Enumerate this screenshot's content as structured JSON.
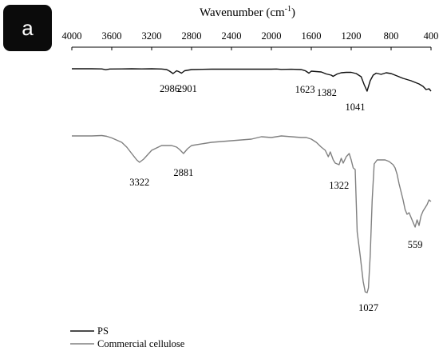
{
  "panel_label": "a",
  "chart_data": {
    "type": "line",
    "title": "",
    "xlabel": "Wavenumber (cm-1)",
    "xlabel_main": "Wavenumber (cm",
    "xlabel_sup": "-1",
    "xlabel_close": ")",
    "ylabel": "",
    "xlim": [
      4000,
      400
    ],
    "x_reversed": true,
    "x_axis_position": "top",
    "grid": false,
    "legend_position": "bottom-left",
    "x_ticks": [
      "4000",
      "3600",
      "3200",
      "2800",
      "2400",
      "2000",
      "1600",
      "1200",
      "800",
      "400"
    ],
    "series": [
      {
        "name": "PS",
        "color": "#111111",
        "x": [
          4000,
          3800,
          3700,
          3660,
          3620,
          3500,
          3400,
          3300,
          3200,
          3100,
          3050,
          3020,
          2986,
          2950,
          2930,
          2901,
          2870,
          2800,
          2600,
          2400,
          2200,
          2000,
          1950,
          1900,
          1800,
          1700,
          1660,
          1623,
          1600,
          1550,
          1500,
          1450,
          1400,
          1382,
          1340,
          1300,
          1250,
          1200,
          1150,
          1100,
          1070,
          1041,
          1010,
          980,
          950,
          900,
          850,
          800,
          760,
          720,
          680,
          640,
          600,
          560,
          520,
          480,
          450,
          420,
          400
        ],
        "y": [
          0.0,
          0.0,
          0.2,
          1.2,
          0.3,
          0.2,
          0.0,
          0.2,
          0.0,
          0.3,
          1.0,
          3.0,
          6.0,
          2.5,
          3.5,
          5.5,
          2.5,
          1.0,
          0.5,
          0.5,
          0.5,
          0.5,
          0.3,
          0.8,
          0.6,
          1.0,
          2.5,
          5.5,
          3.0,
          3.5,
          4.0,
          6.5,
          8.0,
          9.5,
          6.5,
          5.0,
          4.5,
          4.5,
          6.0,
          10.0,
          20.0,
          28.0,
          15.0,
          8.0,
          5.5,
          7.0,
          5.0,
          6.0,
          8.0,
          10.0,
          12.0,
          13.5,
          15.0,
          17.0,
          19.0,
          22.0,
          26.0,
          25.0,
          28.0
        ]
      },
      {
        "name": "Commercial cellulose",
        "color": "#808080",
        "x": [
          4000,
          3900,
          3800,
          3700,
          3650,
          3600,
          3500,
          3450,
          3400,
          3350,
          3322,
          3280,
          3200,
          3100,
          3000,
          2950,
          2920,
          2881,
          2840,
          2800,
          2600,
          2400,
          2200,
          2100,
          2000,
          1900,
          1800,
          1700,
          1650,
          1600,
          1550,
          1500,
          1460,
          1430,
          1410,
          1380,
          1360,
          1322,
          1300,
          1280,
          1250,
          1220,
          1200,
          1180,
          1160,
          1140,
          1110,
          1080,
          1060,
          1040,
          1027,
          1010,
          990,
          970,
          940,
          900,
          860,
          820,
          800,
          780,
          760,
          740,
          720,
          700,
          680,
          660,
          640,
          620,
          600,
          580,
          559,
          540,
          520,
          500,
          480,
          460,
          440,
          420,
          400
        ],
        "y": [
          0,
          0,
          0,
          -0.5,
          0.5,
          2.5,
          8,
          14,
          22,
          30,
          33,
          29,
          18,
          12,
          12,
          14,
          17,
          22,
          16,
          12,
          8,
          6,
          4,
          1,
          2,
          0,
          1,
          2,
          2,
          4,
          8,
          14,
          18,
          26,
          20,
          30,
          34,
          36,
          28,
          34,
          26,
          22,
          30,
          40,
          42,
          120,
          150,
          182,
          195,
          196,
          190,
          150,
          80,
          35,
          30,
          30,
          30,
          32,
          34,
          36,
          40,
          48,
          60,
          70,
          80,
          92,
          98,
          96,
          102,
          108,
          114,
          105,
          112,
          100,
          94,
          90,
          86,
          80,
          82
        ]
      }
    ],
    "annotations": [
      {
        "text": "2986",
        "x": 3020,
        "y": 17
      },
      {
        "text": "2901",
        "x": 2845,
        "y": 17
      },
      {
        "text": "1623",
        "x": 1663,
        "y": 18
      },
      {
        "text": "1382",
        "x": 1445,
        "y": 22
      },
      {
        "text": "1041",
        "x": 1160,
        "y": 40
      },
      {
        "text": "3322",
        "x": 3322,
        "y": 50
      },
      {
        "text": "2881",
        "x": 2881,
        "y": 38
      },
      {
        "text": "1322",
        "x": 1322,
        "y": 54
      },
      {
        "text": "1027",
        "x": 1027,
        "y": 207
      },
      {
        "text": "559",
        "x": 559,
        "y": 128
      }
    ]
  }
}
